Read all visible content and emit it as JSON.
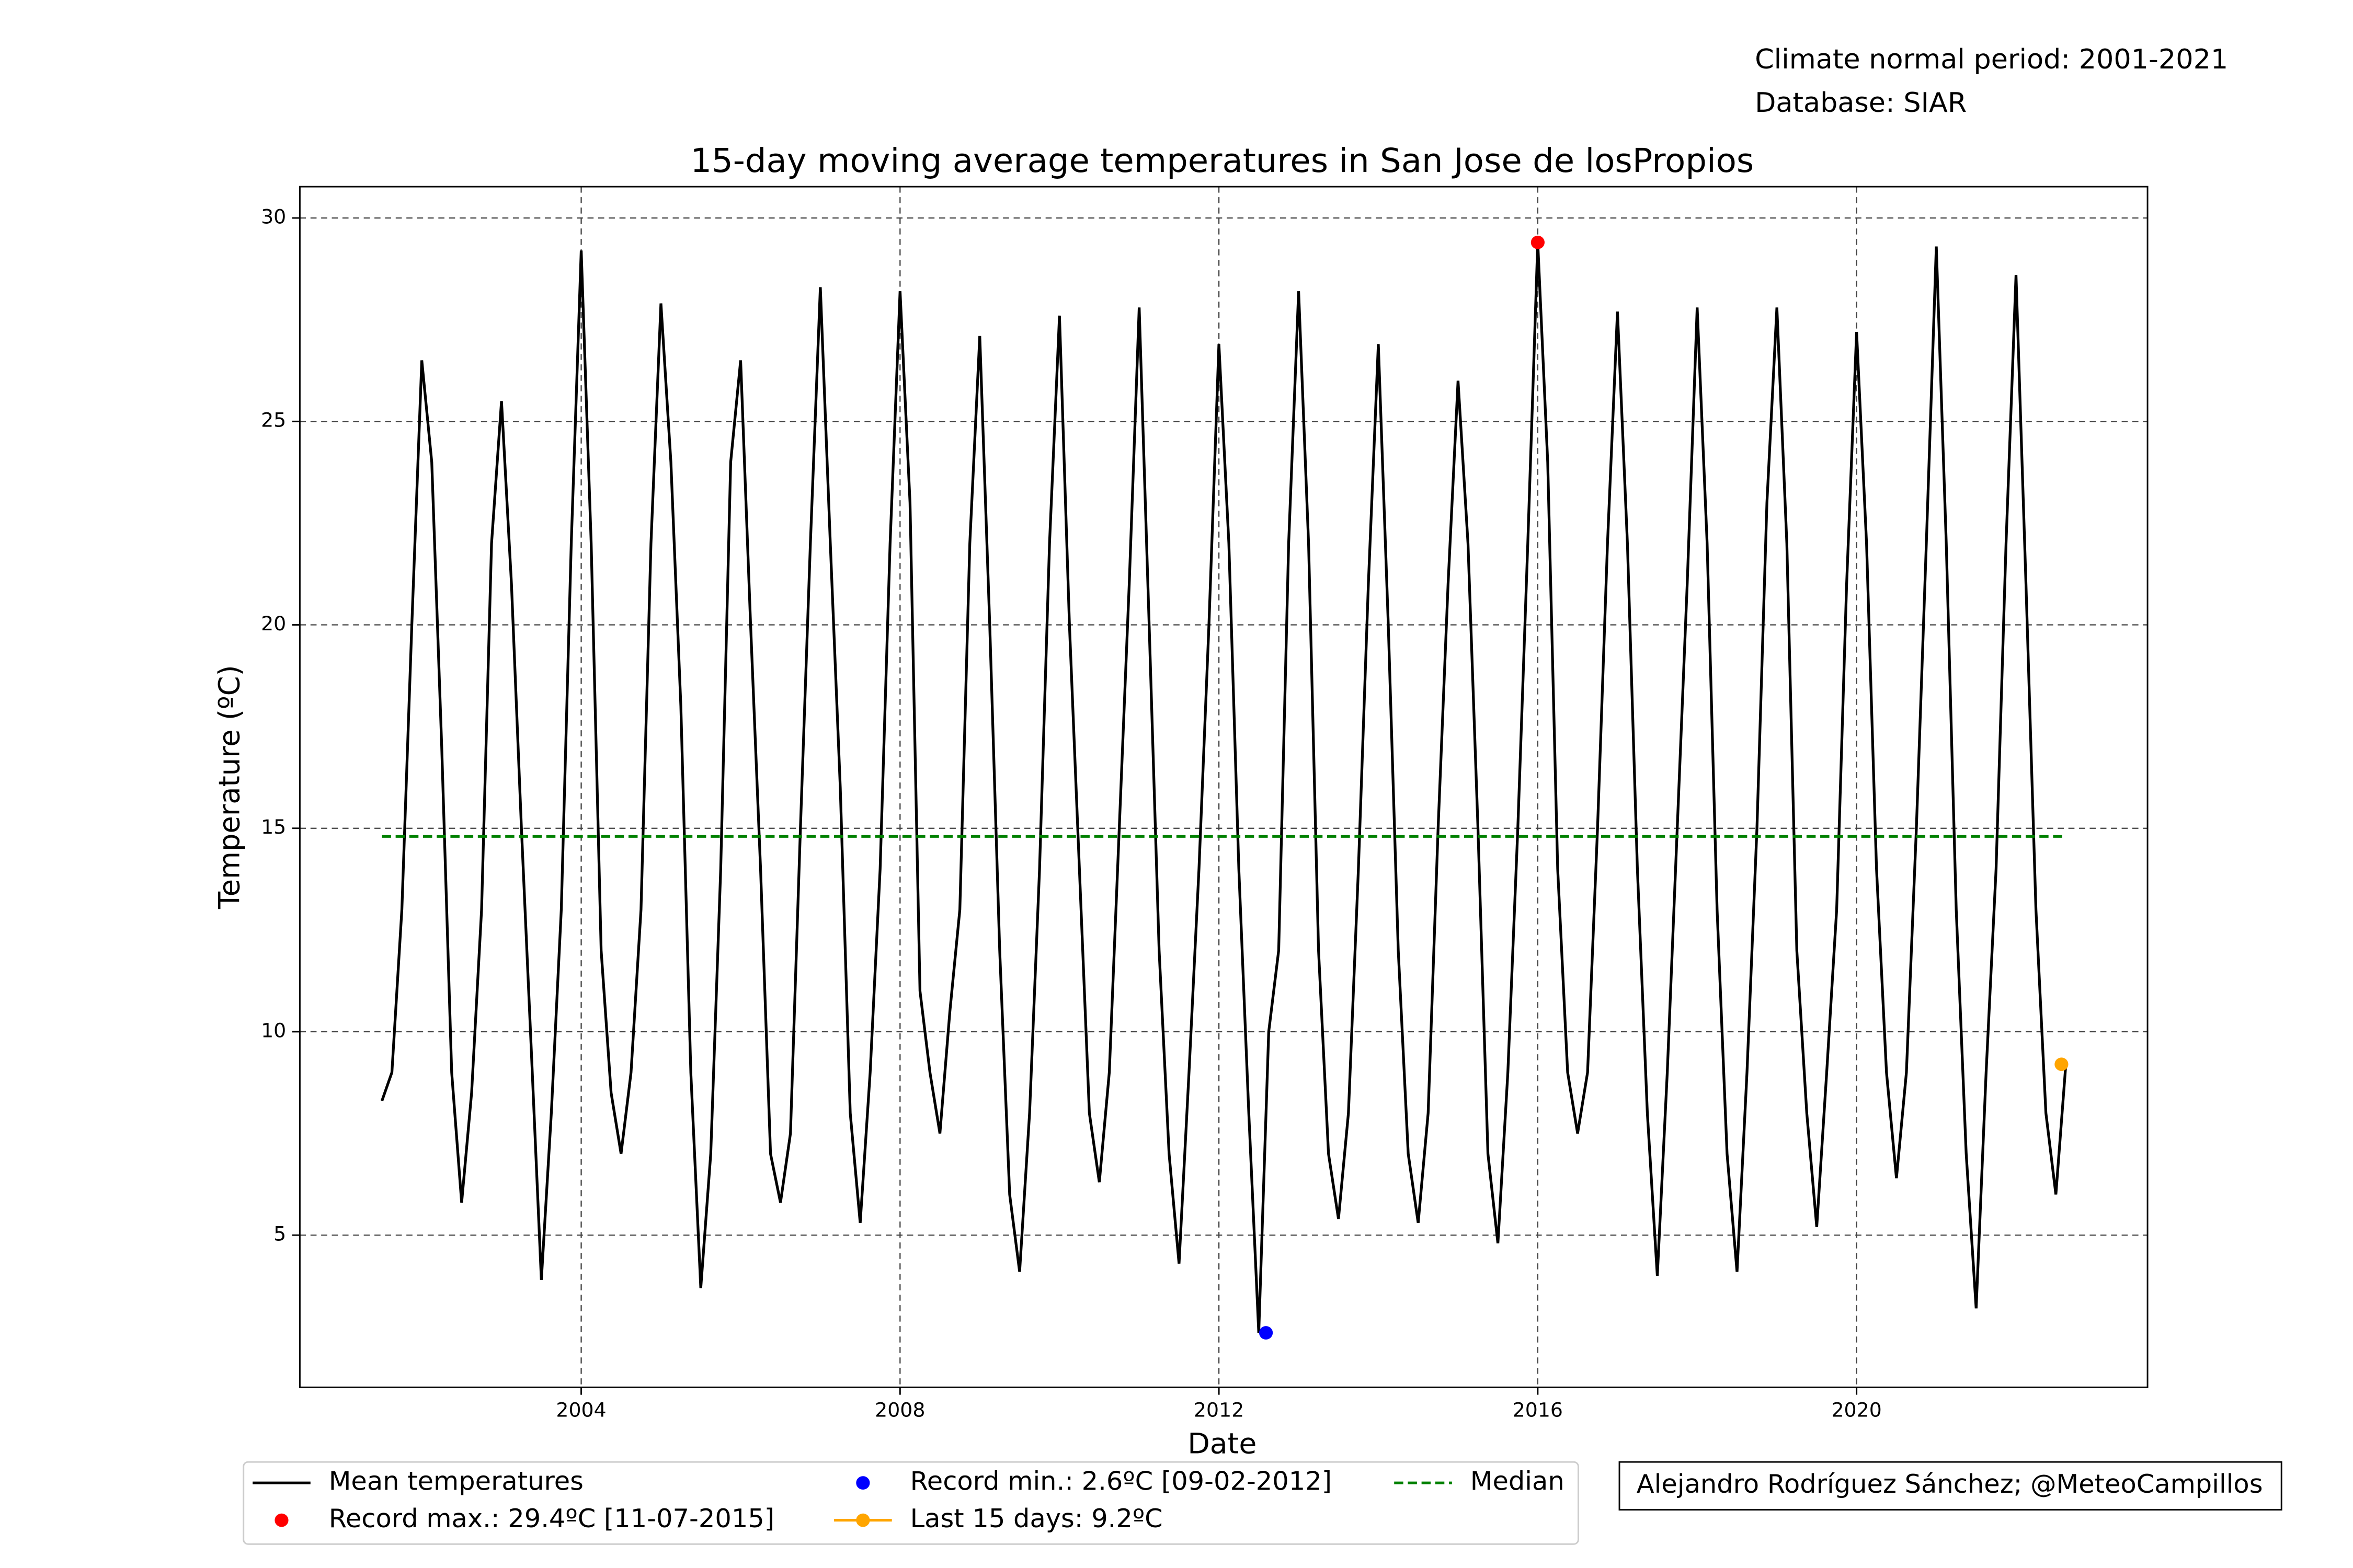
{
  "chart_data": {
    "type": "line",
    "title": "15-day moving average temperatures in San Jose de losPropios",
    "notes": [
      "Climate normal period: 2001-2021",
      "Database: SIAR"
    ],
    "credit": "Alejandro Rodríguez Sánchez; @MeteoCampillos",
    "x_label": "Date",
    "y_label": "Temperature (ºC)",
    "xlim": [
      2000.47,
      2023.65
    ],
    "ylim": [
      1.26,
      30.77
    ],
    "xticks": [
      2004,
      2008,
      2012,
      2016,
      2020
    ],
    "yticks": [
      5,
      10,
      15,
      20,
      25,
      30
    ],
    "grid": true,
    "legend": "bottom",
    "series": [
      {
        "name": "Mean temperatures",
        "color": "#000000",
        "style": "line",
        "x": [
          2001.5,
          2001.625,
          2001.75,
          2001.875,
          2002,
          2002.125,
          2002.25,
          2002.375,
          2002.5,
          2002.625,
          2002.75,
          2002.875,
          2003,
          2003.125,
          2003.25,
          2003.375,
          2003.5,
          2003.625,
          2003.75,
          2003.875,
          2004,
          2004.125,
          2004.25,
          2004.375,
          2004.5,
          2004.625,
          2004.75,
          2004.875,
          2005,
          2005.125,
          2005.25,
          2005.375,
          2005.5,
          2005.625,
          2005.75,
          2005.875,
          2006,
          2006.125,
          2006.25,
          2006.375,
          2006.5,
          2006.625,
          2006.75,
          2006.875,
          2007,
          2007.125,
          2007.25,
          2007.375,
          2007.5,
          2007.625,
          2007.75,
          2007.875,
          2008,
          2008.125,
          2008.25,
          2008.375,
          2008.5,
          2008.625,
          2008.75,
          2008.875,
          2009,
          2009.125,
          2009.25,
          2009.375,
          2009.5,
          2009.625,
          2009.75,
          2009.875,
          2010,
          2010.125,
          2010.25,
          2010.375,
          2010.5,
          2010.625,
          2010.75,
          2010.875,
          2011,
          2011.125,
          2011.25,
          2011.375,
          2011.5,
          2011.625,
          2011.75,
          2011.875,
          2012,
          2012.125,
          2012.25,
          2012.375,
          2012.5,
          2012.625,
          2012.75,
          2012.875,
          2013,
          2013.125,
          2013.25,
          2013.375,
          2013.5,
          2013.625,
          2013.75,
          2013.875,
          2014,
          2014.125,
          2014.25,
          2014.375,
          2014.5,
          2014.625,
          2014.75,
          2014.875,
          2015,
          2015.125,
          2015.25,
          2015.375,
          2015.5,
          2015.625,
          2015.75,
          2015.875,
          2016,
          2016.125,
          2016.25,
          2016.375,
          2016.5,
          2016.625,
          2016.75,
          2016.875,
          2017,
          2017.125,
          2017.25,
          2017.375,
          2017.5,
          2017.625,
          2017.75,
          2017.875,
          2018,
          2018.125,
          2018.25,
          2018.375,
          2018.5,
          2018.625,
          2018.75,
          2018.875,
          2019,
          2019.125,
          2019.25,
          2019.375,
          2019.5,
          2019.625,
          2019.75,
          2019.875,
          2020,
          2020.125,
          2020.25,
          2020.375,
          2020.5,
          2020.625,
          2020.75,
          2020.875,
          2021,
          2021.125,
          2021.25,
          2021.375,
          2021.5,
          2021.625,
          2021.75,
          2021.875,
          2022,
          2022.125,
          2022.25,
          2022.375,
          2022.5,
          2022.625
        ],
        "values": [
          8.3,
          9.0,
          13.0,
          20.0,
          26.5,
          24.0,
          17.0,
          9.0,
          5.8,
          8.5,
          13.0,
          22.0,
          25.5,
          21.0,
          15.0,
          9.5,
          3.9,
          8.0,
          13.0,
          22.0,
          29.2,
          22.0,
          12.0,
          8.5,
          7.0,
          9.0,
          13.0,
          22.0,
          27.9,
          24.0,
          18.0,
          9.0,
          3.7,
          7.0,
          14.0,
          24.0,
          26.5,
          20.0,
          14.0,
          7.0,
          5.8,
          7.5,
          15.0,
          22.0,
          28.3,
          22.0,
          16.0,
          8.0,
          5.3,
          9.0,
          14.0,
          22.0,
          28.2,
          23.0,
          11.0,
          9.0,
          7.5,
          10.5,
          13.0,
          22.0,
          27.1,
          20.0,
          12.0,
          6.0,
          4.1,
          8.0,
          14.0,
          22.0,
          27.6,
          20.0,
          14.0,
          8.0,
          6.3,
          9.0,
          15.0,
          21.0,
          27.8,
          20.0,
          12.0,
          7.0,
          4.3,
          9.0,
          14.0,
          20.0,
          26.9,
          22.0,
          14.0,
          8.0,
          2.6,
          10.0,
          12.0,
          22.0,
          28.2,
          22.0,
          12.0,
          7.0,
          5.4,
          8.0,
          14.0,
          21.0,
          26.9,
          20.0,
          12.0,
          7.0,
          5.3,
          8.0,
          15.0,
          21.0,
          26.0,
          22.0,
          15.0,
          7.0,
          4.8,
          9.0,
          15.0,
          22.0,
          29.4,
          24.0,
          14.0,
          9.0,
          7.5,
          9.0,
          15.0,
          22.0,
          27.7,
          22.0,
          14.0,
          8.0,
          4.0,
          9.0,
          15.0,
          21.0,
          27.8,
          22.0,
          13.0,
          7.0,
          4.1,
          9.0,
          15.0,
          23.0,
          27.8,
          22.0,
          12.0,
          8.0,
          5.2,
          9.0,
          13.0,
          21.0,
          27.2,
          22.0,
          14.0,
          9.0,
          6.4,
          9.0,
          15.0,
          22.0,
          29.3,
          22.0,
          13.0,
          7.0,
          3.2,
          9.0,
          14.0,
          22.0,
          28.6,
          21.0,
          13.0,
          8.0,
          6.0,
          9.2
        ]
      },
      {
        "name": "Record max.: 29.4ºC [11-07-2015]",
        "color": "#ff0000",
        "style": "marker",
        "x": [
          2016.0
        ],
        "values": [
          29.4
        ]
      },
      {
        "name": "Record min.: 2.6ºC [09-02-2012]",
        "color": "#0000ff",
        "style": "marker",
        "x": [
          2012.59
        ],
        "values": [
          2.6
        ]
      },
      {
        "name": "Last 15 days: 9.2ºC",
        "color": "#ffa500",
        "style": "line-marker",
        "x": [
          2022.57
        ],
        "values": [
          9.2
        ]
      },
      {
        "name": "Median",
        "color": "#008000",
        "style": "dashed",
        "x": [
          2001.5,
          2022.625
        ],
        "values": [
          14.8,
          14.8
        ]
      }
    ]
  }
}
